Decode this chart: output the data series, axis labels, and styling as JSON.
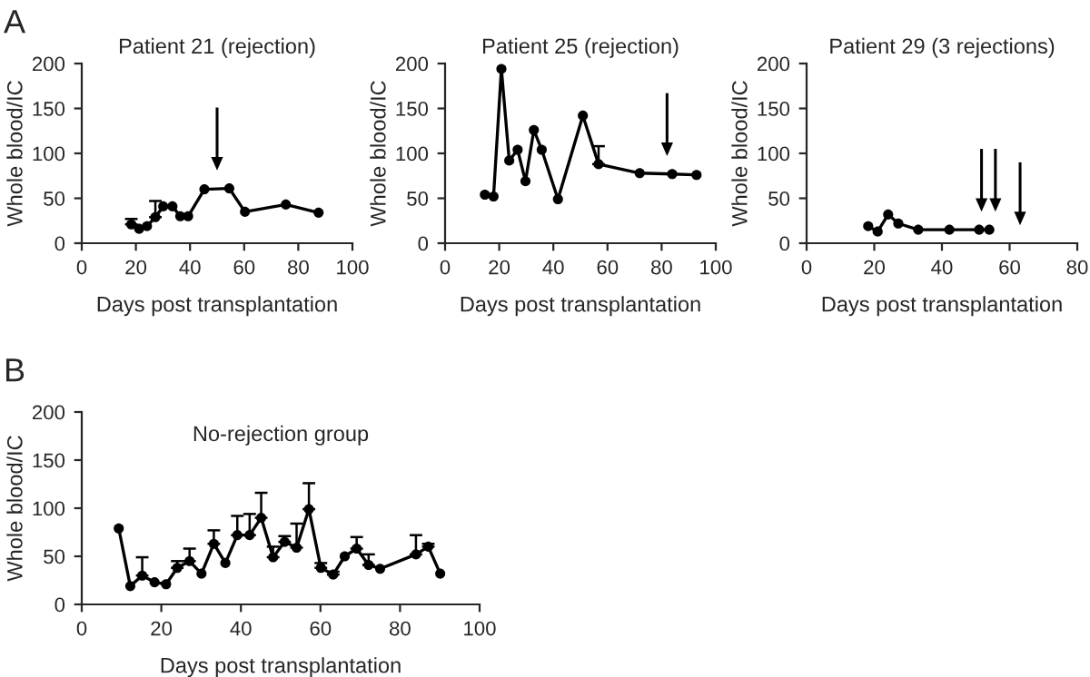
{
  "chart_data": [
    {
      "type": "line",
      "title": "Patient 21 (rejection)",
      "xlabel": "Days post transplantation",
      "ylabel": "Whole blood/IC",
      "marker": "circle",
      "line_style": "solid",
      "color": "#000000",
      "x": [
        18.3,
        21.2,
        24.1,
        27.2,
        30.1,
        33.5,
        36.4,
        39.3,
        45.3,
        54.5,
        60.3,
        75.4,
        87.5
      ],
      "values": [
        21,
        16,
        19,
        29,
        41,
        41,
        30,
        30,
        60,
        61,
        35,
        43,
        34
      ],
      "errors": [
        [
          21,
          27
        ],
        null,
        null,
        [
          29,
          47
        ],
        null,
        null,
        null,
        null,
        null,
        null,
        null,
        null,
        null
      ],
      "xlim": [
        0,
        100
      ],
      "ylim": [
        0,
        200
      ],
      "xticks": [
        0,
        20,
        40,
        60,
        80,
        100
      ],
      "yticks": [
        0,
        50,
        100,
        150,
        200
      ],
      "annotations": [
        "A"
      ],
      "ref_lines": [
        {
          "axis": "x",
          "value": 50
        }
      ]
    },
    {
      "type": "line",
      "title": "Patient 25 (rejection)",
      "xlabel": "Days post transplantation",
      "ylabel": "Whole blood/IC",
      "marker": "circle",
      "line_style": "solid",
      "color": "#000000",
      "x": [
        14.7,
        17.9,
        20.8,
        23.7,
        26.8,
        29.7,
        32.8,
        35.7,
        41.7,
        50.9,
        56.7,
        71.9,
        83.9,
        92.9
      ],
      "values": [
        54,
        52,
        194,
        92,
        104,
        69,
        126,
        104,
        49,
        142,
        88,
        78,
        77,
        76
      ],
      "errors": [
        null,
        null,
        null,
        null,
        null,
        null,
        null,
        null,
        null,
        null,
        [
          88,
          108
        ],
        null,
        null,
        null
      ],
      "xlim": [
        0,
        100
      ],
      "ylim": [
        0,
        200
      ],
      "xticks": [
        0,
        20,
        40,
        60,
        80,
        100
      ],
      "yticks": [
        0,
        50,
        100,
        150,
        200
      ],
      "ref_lines": [
        {
          "axis": "x",
          "value": 82
        }
      ]
    },
    {
      "type": "line",
      "title": "Patient 29 (3 rejections)",
      "xlabel": "Days post transplantation",
      "ylabel": "Whole blood/IC",
      "marker": "circle",
      "line_style": "solid",
      "color": "#000000",
      "x": [
        18.2,
        21,
        24.1,
        27.1,
        33,
        42.2,
        51,
        54
      ],
      "values": [
        19,
        13,
        32,
        22,
        15,
        15,
        15,
        15
      ],
      "xlim": [
        0,
        80
      ],
      "ylim": [
        0,
        200
      ],
      "xticks": [
        0,
        20,
        40,
        60,
        80
      ],
      "yticks": [
        0,
        50,
        100,
        150,
        200
      ],
      "ref_lines": [
        {
          "axis": "x",
          "value": 51.7
        },
        {
          "axis": "x",
          "value": 55.8
        },
        {
          "axis": "x",
          "value": 63.1
        }
      ]
    },
    {
      "type": "line",
      "title": "No-rejection group",
      "xlabel": "Days post transplantation",
      "ylabel": "Whole blood/IC",
      "marker": "circle",
      "line_style": "solid",
      "color": "#000000",
      "x": [
        9.3,
        12.2,
        15.2,
        18.3,
        21.2,
        24,
        27.1,
        30.1,
        33.2,
        36.1,
        39.1,
        42.2,
        45.1,
        48.1,
        51,
        54,
        57.1,
        60.1,
        63.2,
        66.1,
        69.1,
        72.1,
        75,
        84,
        87.1,
        90.1
      ],
      "values": [
        79,
        19,
        30,
        23,
        21,
        38,
        45,
        32,
        63,
        43,
        72,
        72,
        90,
        49,
        65,
        59,
        99,
        38,
        31,
        50,
        58,
        41,
        37,
        52,
        60,
        32
      ],
      "errors": [
        null,
        null,
        [
          30,
          49
        ],
        null,
        null,
        [
          38,
          45
        ],
        [
          45,
          58
        ],
        null,
        [
          63,
          77
        ],
        null,
        [
          72,
          92
        ],
        [
          72,
          94
        ],
        [
          90,
          116
        ],
        [
          49,
          60
        ],
        [
          65,
          71
        ],
        [
          59,
          84
        ],
        [
          99,
          126
        ],
        [
          38,
          43
        ],
        [
          31,
          34
        ],
        null,
        [
          58,
          70
        ],
        [
          41,
          52
        ],
        null,
        [
          52,
          72
        ],
        [
          60,
          63
        ],
        null
      ],
      "xlim": [
        0,
        100
      ],
      "ylim": [
        0,
        200
      ],
      "xticks": [
        0,
        20,
        40,
        60,
        80,
        100
      ],
      "yticks": [
        0,
        50,
        100,
        150,
        200
      ],
      "annotations": [
        "B"
      ]
    }
  ]
}
